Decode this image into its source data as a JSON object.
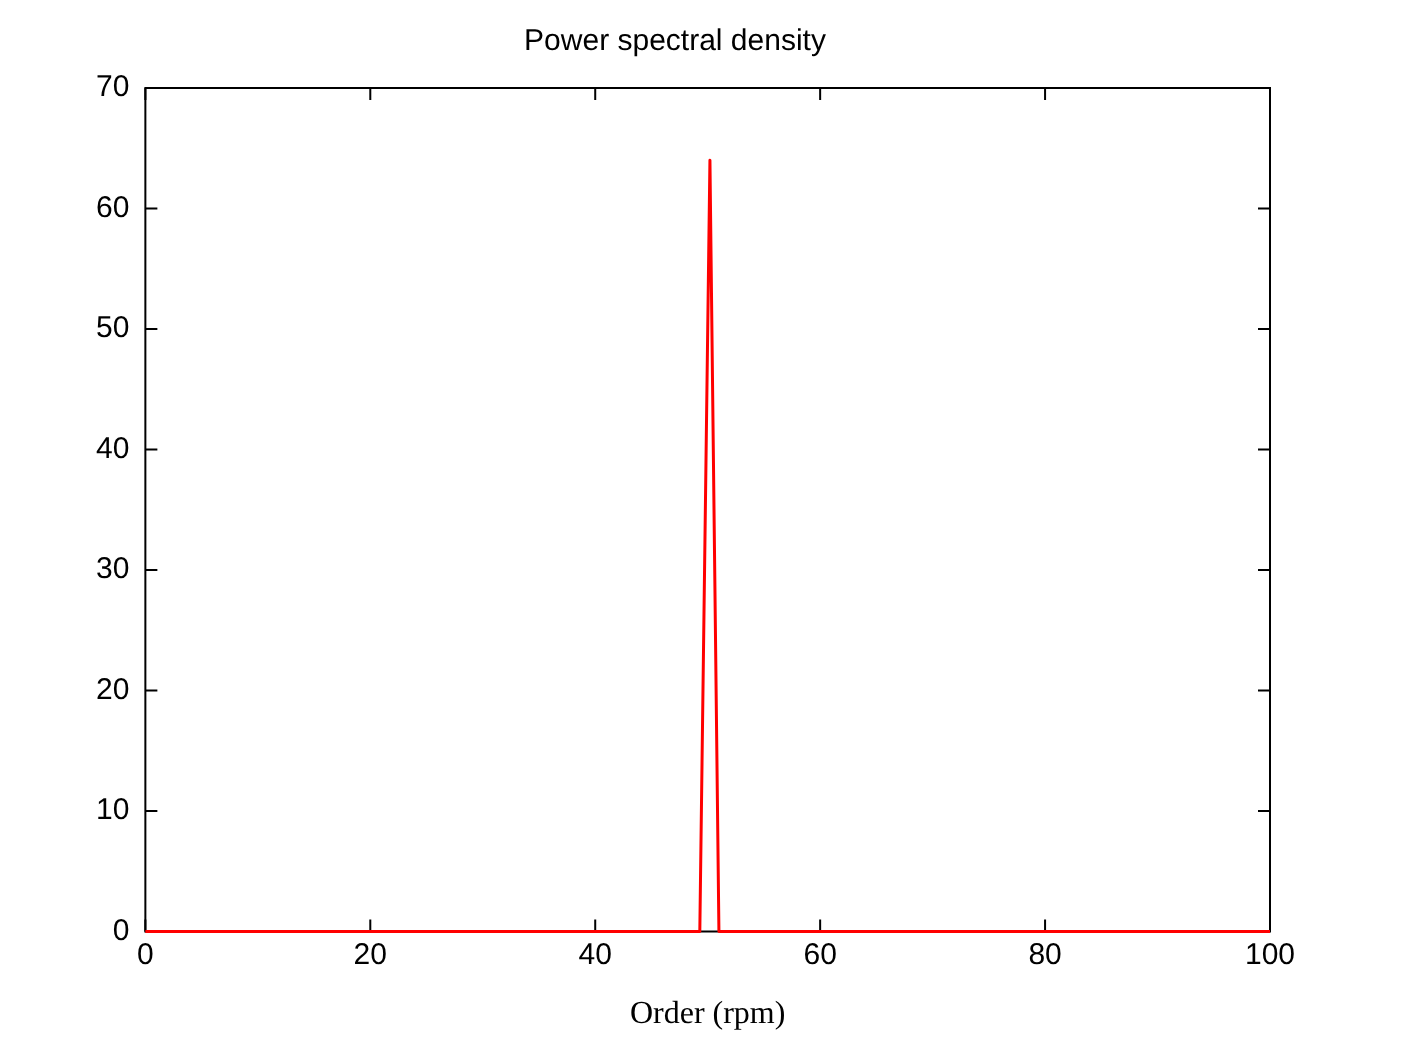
{
  "chart_data": {
    "type": "line",
    "title": "Power spectral density",
    "xlabel": "Order (rpm)",
    "series": [
      {
        "color": "#ff0000",
        "x": [
          0,
          49.3,
          50.2,
          51,
          100
        ],
        "values": [
          0,
          0,
          64,
          0,
          0
        ]
      }
    ],
    "xlim": [
      0,
      100
    ],
    "xticks": [
      0,
      20,
      40,
      60,
      80,
      100
    ],
    "ylim": [
      0,
      70
    ],
    "yticks": [
      0,
      10,
      20,
      30,
      40,
      50,
      60,
      70
    ],
    "grid": false,
    "legend": false,
    "marker": "none",
    "line_style": "solid"
  }
}
